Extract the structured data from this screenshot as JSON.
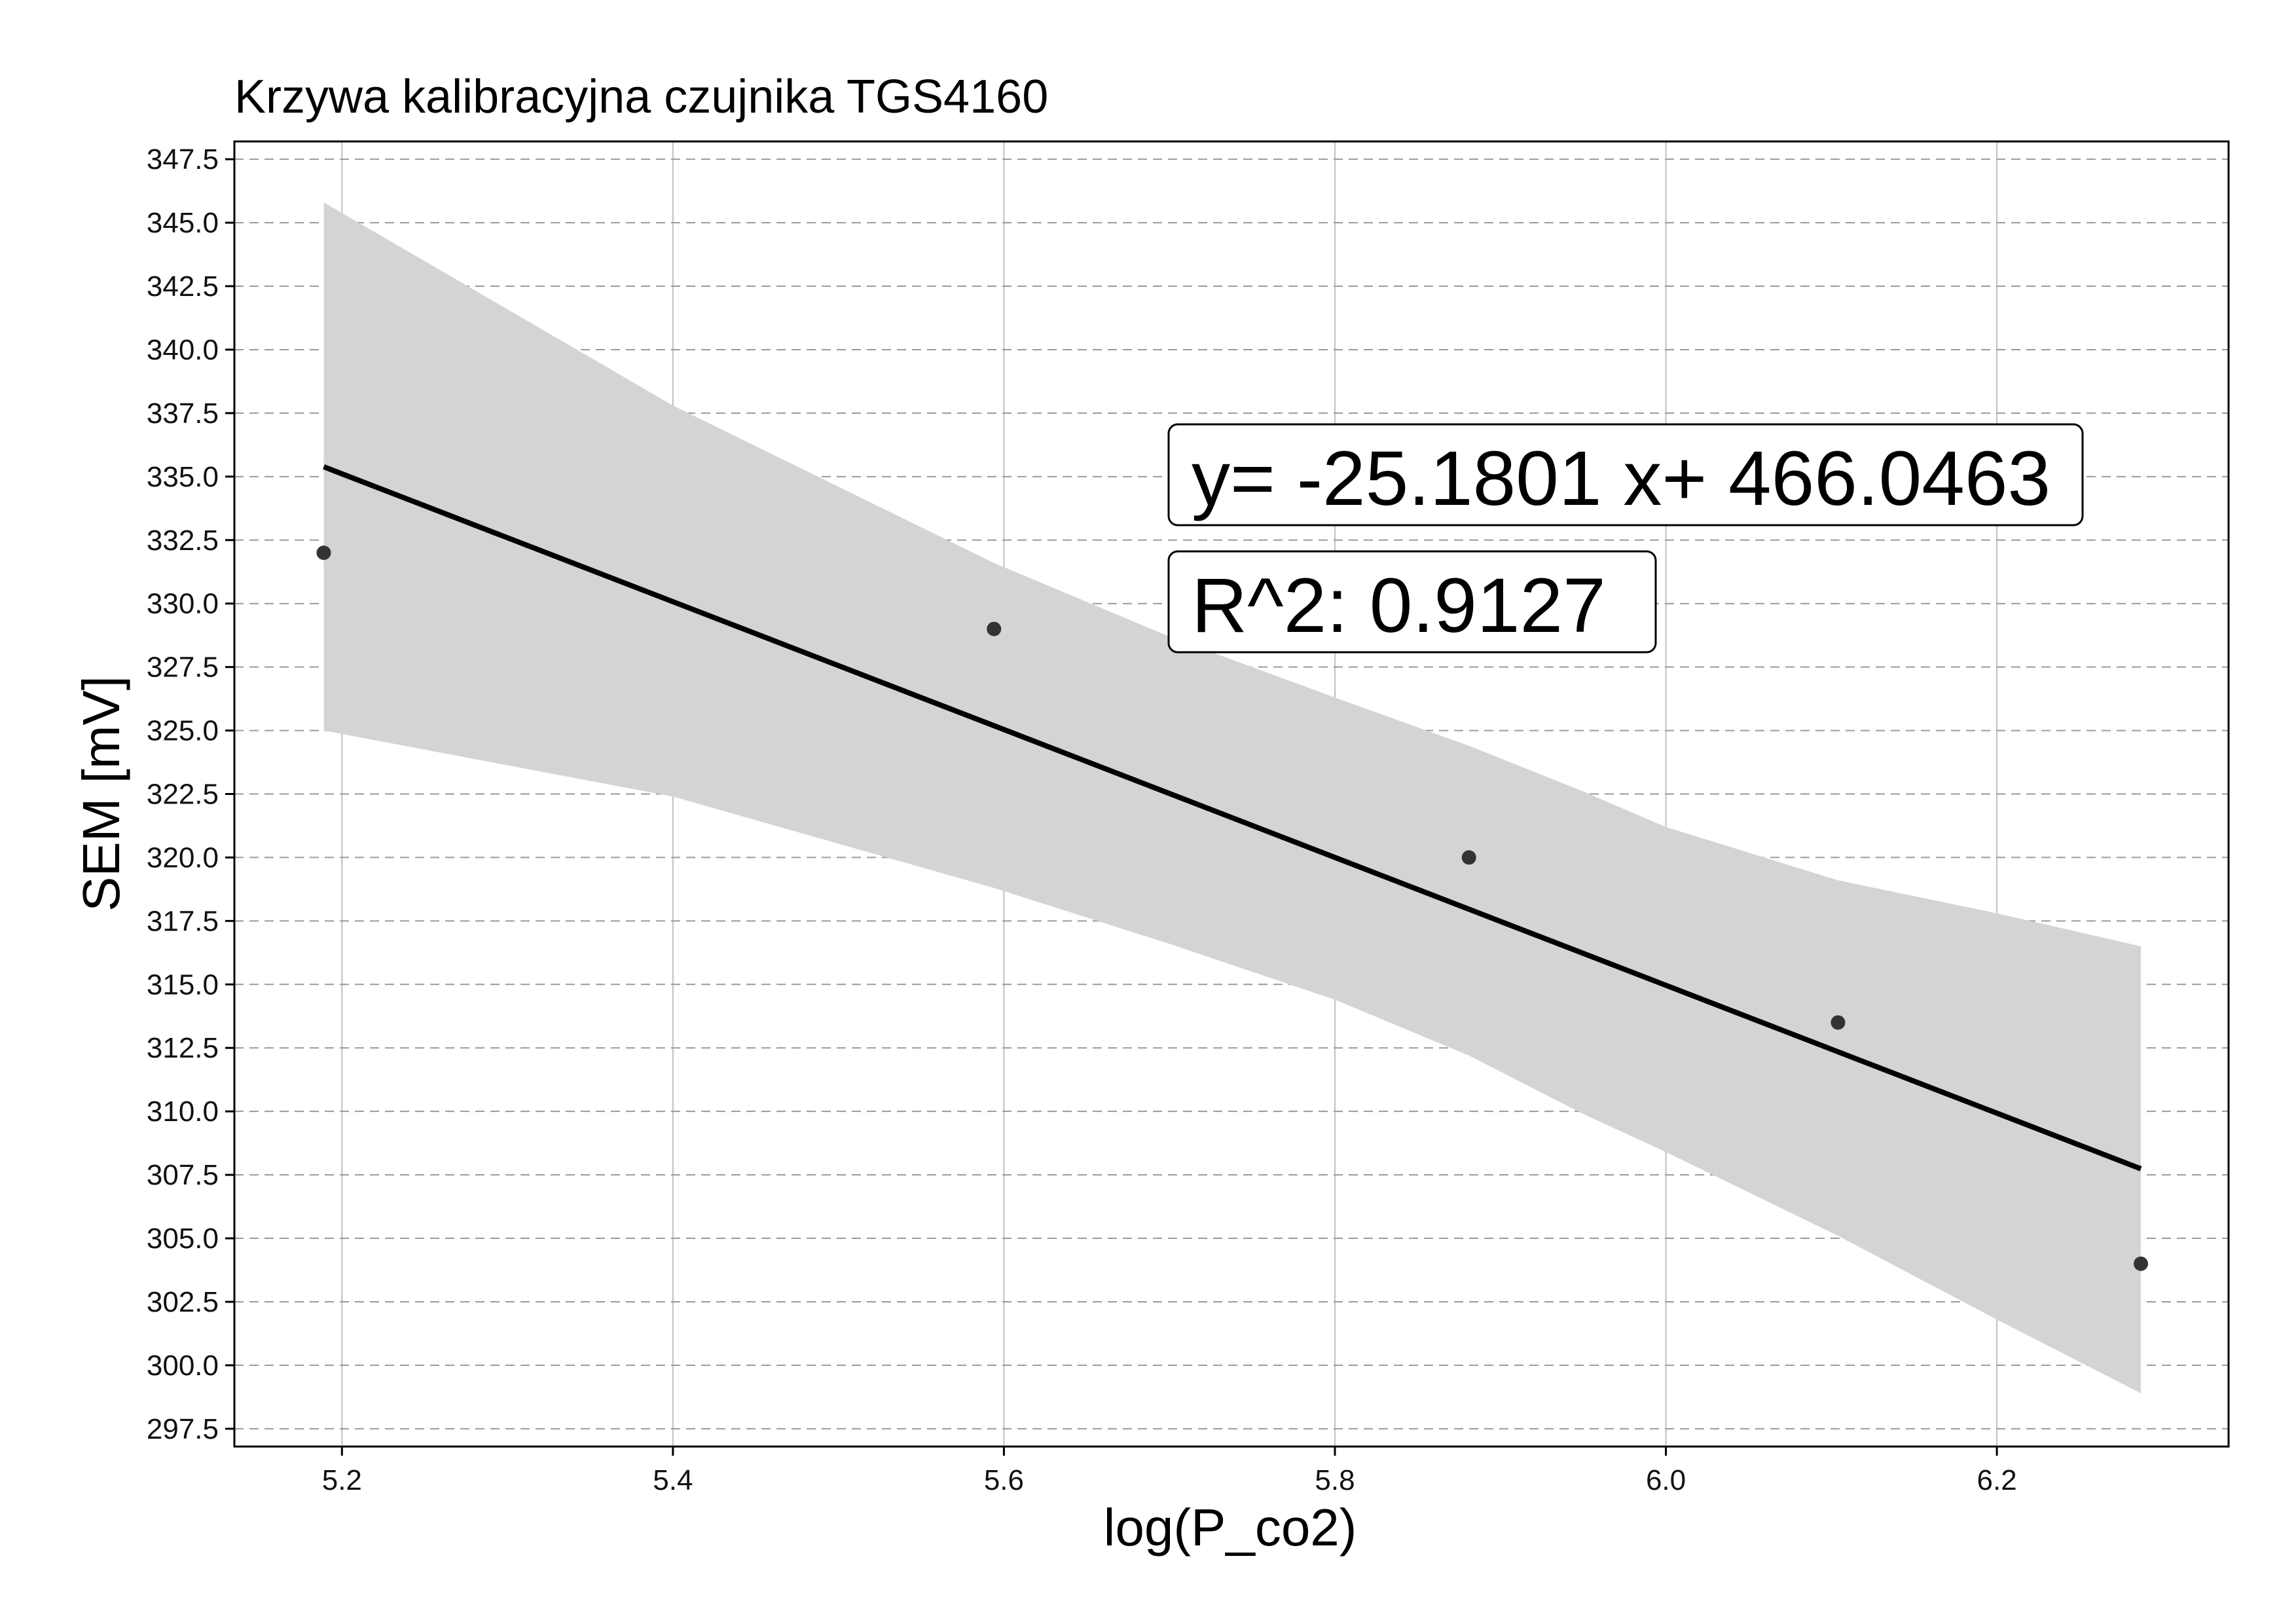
{
  "chart_data": {
    "type": "scatter",
    "title": "Krzywa kalibracyjna czujnika TGS4160",
    "xlabel": "log(P_co2)",
    "ylabel": "SEM [mV]",
    "xlim": [
      5.135,
      6.34
    ],
    "ylim": [
      296.8,
      348.2
    ],
    "x_ticks": [
      5.2,
      5.4,
      5.6,
      5.8,
      6.0,
      6.2
    ],
    "x_tick_labels": [
      "5.2",
      "5.4",
      "5.6",
      "5.8",
      "6.0",
      "6.2"
    ],
    "y_ticks": [
      297.5,
      300.0,
      302.5,
      305.0,
      307.5,
      310.0,
      312.5,
      315.0,
      317.5,
      320.0,
      322.5,
      325.0,
      327.5,
      330.0,
      332.5,
      335.0,
      337.5,
      340.0,
      342.5,
      345.0,
      347.5
    ],
    "y_tick_labels": [
      "297.5",
      "300.0",
      "302.5",
      "305.0",
      "307.5",
      "310.0",
      "312.5",
      "315.0",
      "317.5",
      "320.0",
      "322.5",
      "325.0",
      "327.5",
      "330.0",
      "332.5",
      "335.0",
      "337.5",
      "340.0",
      "342.5",
      "345.0",
      "347.5"
    ],
    "grid": {
      "vertical": "solid",
      "horizontal": "dashed"
    },
    "points": {
      "x": [
        5.189,
        5.594,
        5.881,
        6.104,
        6.287
      ],
      "y": [
        332.0,
        329.0,
        320.0,
        313.5,
        304.0
      ]
    },
    "fit_line": {
      "x": [
        5.189,
        6.287
      ],
      "slope": -25.1801,
      "intercept": 466.0463
    },
    "confidence_band": {
      "x": [
        5.189,
        5.4,
        5.594,
        5.7,
        5.8,
        5.881,
        5.95,
        6.0,
        6.104,
        6.2,
        6.287
      ],
      "upper": [
        345.8,
        337.8,
        331.6,
        328.7,
        326.3,
        324.4,
        322.6,
        321.2,
        319.1,
        317.8,
        316.5
      ],
      "lower": [
        325.0,
        322.4,
        318.8,
        316.6,
        314.4,
        312.2,
        309.9,
        308.4,
        305.1,
        301.8,
        298.9
      ]
    },
    "annotations": [
      {
        "text": "y= -25.1801 x+ 466.0463"
      },
      {
        "text": "R^2:  0.9127"
      }
    ],
    "colors": {
      "band": "#d4d4d4",
      "line": "#000000",
      "point": "#333333",
      "grid": "#c0c0c0",
      "border": "#000000"
    }
  }
}
